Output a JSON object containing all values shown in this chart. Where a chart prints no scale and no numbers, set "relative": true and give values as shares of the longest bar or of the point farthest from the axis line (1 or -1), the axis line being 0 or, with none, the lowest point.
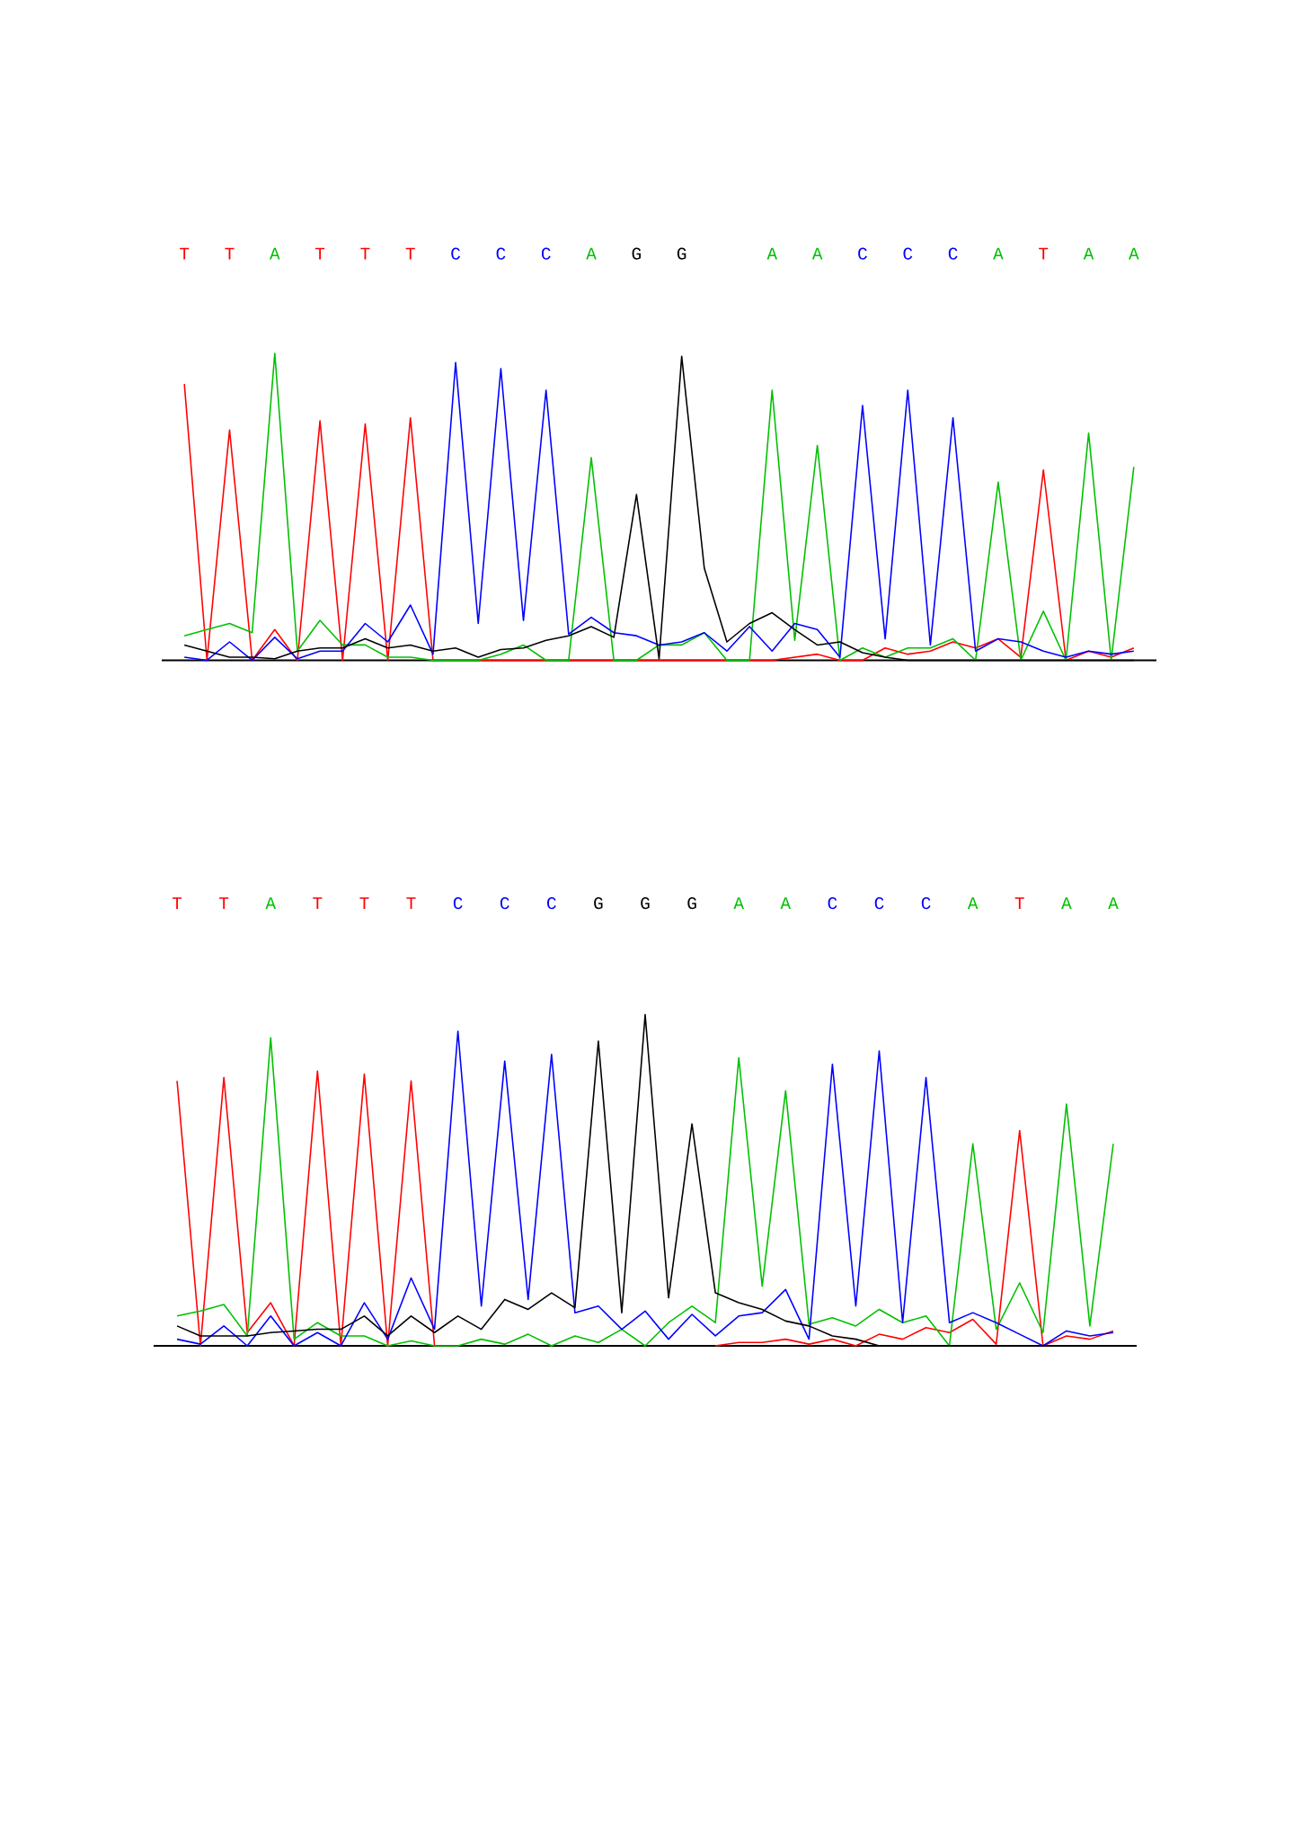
{
  "chart_data": [
    {
      "type": "line",
      "relative": true,
      "categories": [
        "T",
        null,
        "T",
        null,
        "A",
        null,
        "T",
        null,
        "T",
        null,
        "T",
        null,
        "C",
        null,
        "C",
        null,
        "C",
        null,
        "A",
        null,
        "G",
        null,
        "G",
        null,
        null,
        null,
        "A",
        null,
        "A",
        null,
        "C",
        null,
        "C",
        null,
        "C",
        null,
        "A",
        null,
        "T",
        null,
        "A",
        null,
        "A"
      ],
      "series": [
        {
          "color": "#ff0000",
          "values": [
            0.9,
            0,
            0.75,
            0,
            0.1,
            0,
            0.78,
            0,
            0.77,
            0,
            0.79,
            0,
            0,
            0,
            0,
            0,
            0,
            0,
            0,
            0,
            0,
            0,
            0,
            0,
            0,
            0,
            0,
            0.01,
            0.02,
            0,
            0,
            0.04,
            0.02,
            0.03,
            0.06,
            0.04,
            0.07,
            0.01,
            0.62,
            0,
            0.03,
            0.01,
            0.04
          ]
        },
        {
          "color": "#00c000",
          "values": [
            0.08,
            0.1,
            0.12,
            0.09,
            1,
            0.03,
            0.13,
            0.05,
            0.05,
            0.01,
            0.01,
            0,
            0,
            0,
            0.02,
            0.05,
            0,
            0,
            0.66,
            0,
            0,
            0.05,
            0.05,
            0.09,
            0,
            0,
            0.88,
            0.065,
            0.7,
            0,
            0.04,
            0.01,
            0.04,
            0.04,
            0.07,
            0,
            0.58,
            0,
            0.16,
            0,
            0.74,
            0,
            0.63
          ]
        },
        {
          "color": "#0000ff",
          "values": [
            0.01,
            0,
            0.06,
            0,
            0.075,
            0.005,
            0.03,
            0.03,
            0.12,
            0.06,
            0.18,
            0.02,
            0.97,
            0.12,
            0.95,
            0.13,
            0.88,
            0.085,
            0.14,
            0.09,
            0.08,
            0.05,
            0.06,
            0.09,
            0.03,
            0.11,
            0.03,
            0.12,
            0.1,
            0.01,
            0.83,
            0.07,
            0.88,
            0.05,
            0.79,
            0.03,
            0.07,
            0.06,
            0.03,
            0.01,
            0.03,
            0.02,
            0.03
          ]
        },
        {
          "color": "#000000",
          "values": [
            0.05,
            0.03,
            0.01,
            0.01,
            0.005,
            0.03,
            0.04,
            0.04,
            0.07,
            0.04,
            0.05,
            0.03,
            0.04,
            0.01,
            0.035,
            0.04,
            0.065,
            0.08,
            0.11,
            0.075,
            0.54,
            0.005,
            0.99,
            0.3,
            0.06,
            0.12,
            0.155,
            0.1,
            0.05,
            0.06,
            0.025,
            0.01,
            0,
            0,
            0,
            0,
            0,
            0,
            0,
            0,
            0,
            0,
            0
          ]
        }
      ]
    },
    {
      "type": "line",
      "relative": true,
      "categories": [
        "T",
        null,
        "T",
        null,
        "A",
        null,
        "T",
        null,
        "T",
        null,
        "T",
        null,
        "C",
        null,
        "C",
        null,
        "C",
        null,
        "G",
        null,
        "G",
        null,
        "G",
        null,
        "A",
        null,
        "A",
        null,
        "C",
        null,
        "C",
        null,
        "C",
        null,
        "A",
        null,
        "T",
        null,
        "A",
        null,
        "A"
      ],
      "series": [
        {
          "color": "#ff0000",
          "values": [
            0.8,
            0,
            0.81,
            0.04,
            0.13,
            0,
            0.83,
            0,
            0.82,
            0,
            0.8,
            0,
            null,
            null,
            null,
            null,
            null,
            null,
            null,
            null,
            null,
            null,
            null,
            0,
            0.01,
            0.01,
            0.02,
            0.005,
            0.02,
            0,
            0.035,
            0.02,
            0.055,
            0.04,
            0.08,
            0.005,
            0.65,
            0,
            0.03,
            0.02,
            0.045
          ]
        },
        {
          "color": "#00c000",
          "values": [
            0.09,
            0.105,
            0.125,
            0.03,
            0.93,
            0.02,
            0.07,
            0.03,
            0.03,
            0,
            0.015,
            0,
            0,
            0.02,
            0.005,
            0.035,
            0,
            0.03,
            0.01,
            0.05,
            0,
            0.07,
            0.12,
            0.07,
            0.87,
            0.18,
            0.77,
            0.065,
            0.085,
            0.06,
            0.11,
            0.07,
            0.09,
            0,
            0.61,
            0.05,
            0.19,
            0.04,
            0.73,
            0.06,
            0.61
          ]
        },
        {
          "color": "#0000ff",
          "values": [
            0.02,
            0.005,
            0.06,
            0,
            0.09,
            0,
            0.04,
            0,
            0.13,
            0.02,
            0.205,
            0.05,
            0.95,
            0.12,
            0.86,
            0.14,
            0.88,
            0.1,
            0.12,
            0.05,
            0.105,
            0.02,
            0.095,
            0.03,
            0.09,
            0.1,
            0.17,
            0.02,
            0.85,
            0.12,
            0.89,
            0.07,
            0.81,
            0.07,
            0.1,
            0.07,
            0.035,
            0,
            0.045,
            0.03,
            0.04
          ]
        },
        {
          "color": "#000000",
          "values": [
            0.06,
            0.03,
            0.03,
            0.03,
            0.04,
            0.045,
            0.05,
            0.05,
            0.09,
            0.03,
            0.09,
            0.04,
            0.09,
            0.05,
            0.14,
            0.11,
            0.16,
            0.115,
            0.92,
            0.1,
            1,
            0.145,
            0.67,
            0.16,
            0.13,
            0.11,
            0.075,
            0.06,
            0.03,
            0.02,
            0,
            0,
            0,
            0,
            0,
            0,
            0,
            0,
            0,
            0,
            0
          ]
        }
      ]
    }
  ]
}
